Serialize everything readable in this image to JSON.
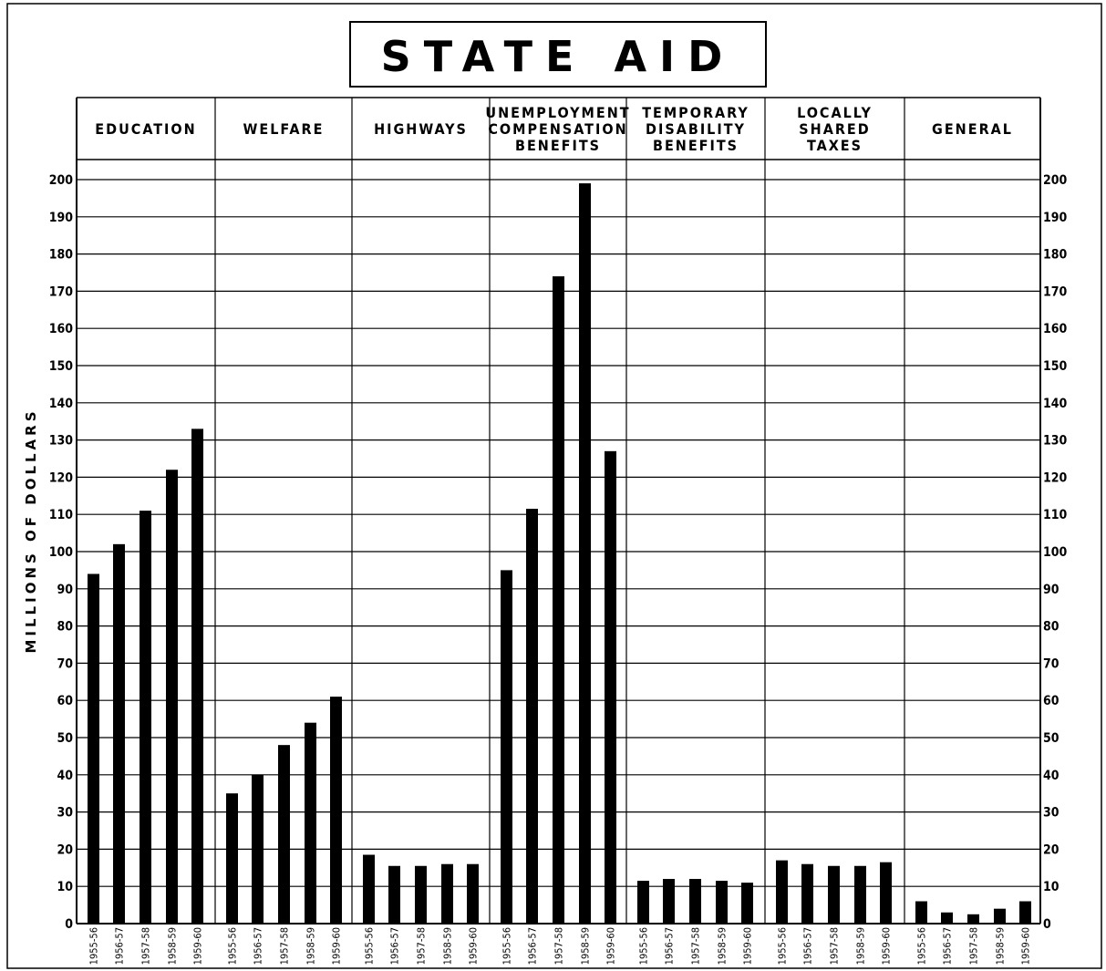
{
  "chart_data": {
    "type": "bar",
    "title": "STATE AID",
    "ylabel": "MILLIONS OF DOLLARS",
    "ylim": [
      0,
      200
    ],
    "yticks": [
      0,
      10,
      20,
      30,
      40,
      50,
      60,
      70,
      80,
      90,
      100,
      110,
      120,
      130,
      140,
      150,
      160,
      170,
      180,
      190,
      200
    ],
    "grid": true,
    "groups": [
      {
        "label_lines": [
          "EDUCATION"
        ],
        "years": [
          "1955-56",
          "1956-57",
          "1957-58",
          "1958-59",
          "1959-60"
        ],
        "values": [
          94,
          102,
          111,
          122,
          133
        ]
      },
      {
        "label_lines": [
          "WELFARE"
        ],
        "years": [
          "1955-56",
          "1956-57",
          "1957-58",
          "1958-59",
          "1959-60"
        ],
        "values": [
          35,
          40,
          48,
          54,
          61
        ]
      },
      {
        "label_lines": [
          "HIGHWAYS"
        ],
        "years": [
          "1955-56",
          "1956-57",
          "1957-58",
          "1958-59",
          "1959-60"
        ],
        "values": [
          18.5,
          15.5,
          15.5,
          16,
          16
        ]
      },
      {
        "label_lines": [
          "UNEMPLOYMENT",
          "COMPENSATION",
          "BENEFITS"
        ],
        "years": [
          "1955-56",
          "1956-57",
          "1957-58",
          "1958-59",
          "1959-60"
        ],
        "values": [
          95,
          111.5,
          174,
          199,
          127
        ]
      },
      {
        "label_lines": [
          "TEMPORARY",
          "DISABILITY",
          "BENEFITS"
        ],
        "years": [
          "1955-56",
          "1956-57",
          "1957-58",
          "1958-59",
          "1959-60"
        ],
        "values": [
          11.5,
          12,
          12,
          11.5,
          11
        ]
      },
      {
        "label_lines": [
          "LOCALLY",
          "SHARED",
          "TAXES"
        ],
        "years": [
          "1955-56",
          "1956-57",
          "1957-58",
          "1958-59",
          "1959-60"
        ],
        "values": [
          17,
          16,
          15.5,
          15.5,
          16.5
        ]
      },
      {
        "label_lines": [
          "GENERAL"
        ],
        "years": [
          "1955-56",
          "1956-57",
          "1957-58",
          "1958-59",
          "1959-60"
        ],
        "values": [
          6,
          3,
          2.5,
          4,
          6
        ]
      }
    ]
  }
}
